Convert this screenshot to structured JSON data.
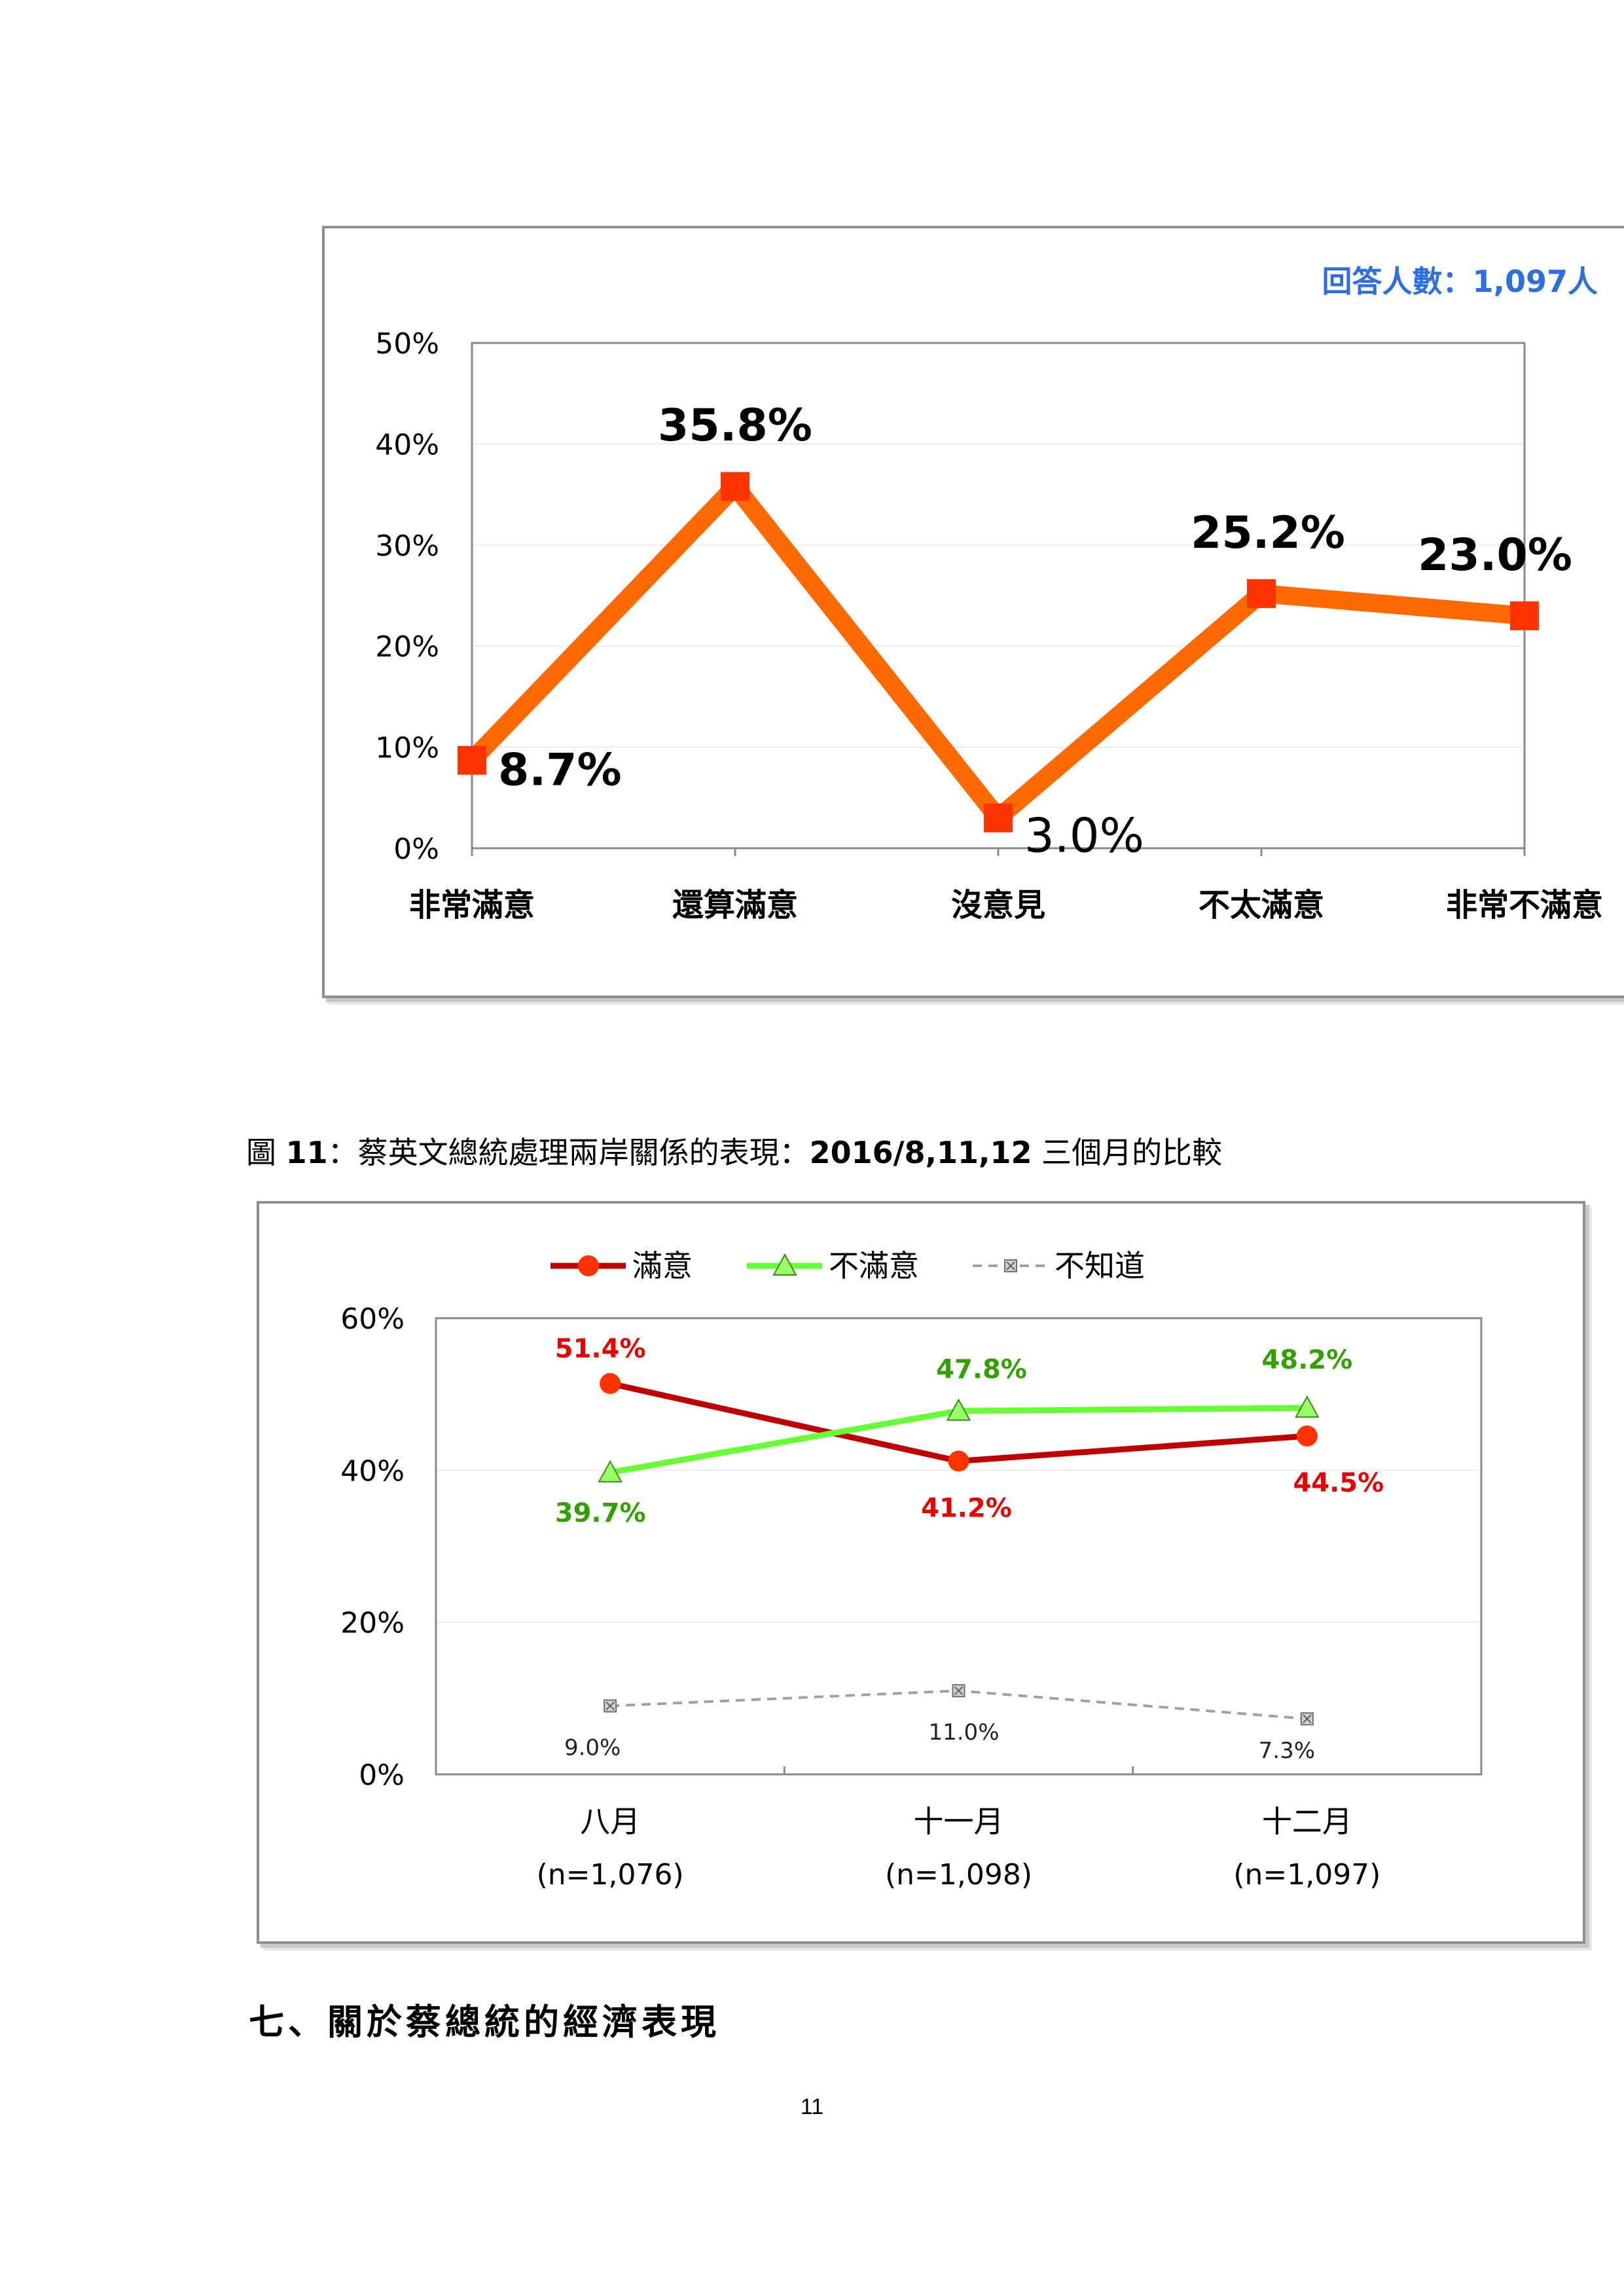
{
  "chart1": {
    "respondents": "回答人數：1,097人",
    "chart_data": {
      "type": "line",
      "categories": [
        "非常滿意",
        "還算滿意",
        "沒意見",
        "不太滿意",
        "非常不滿意"
      ],
      "values": [
        8.7,
        35.8,
        3.0,
        25.2,
        23.0
      ],
      "value_labels": [
        "8.7%",
        "35.8%",
        "3.0%",
        "25.2%",
        "23.0%"
      ],
      "ylim": [
        0,
        50
      ],
      "yticks": [
        "0%",
        "10%",
        "20%",
        "30%",
        "40%",
        "50%"
      ],
      "grid": true,
      "color": "#ff6a00",
      "marker_color": "#ff3300"
    }
  },
  "figure11": {
    "caption_prefix": "圖 ",
    "caption_num": "11",
    "caption_mid": "：蔡英文總統處理兩岸關係的表現：",
    "caption_dates": "2016/8,11,12",
    "caption_suffix": " 三個月的比較"
  },
  "chart2": {
    "chart_data": {
      "type": "line",
      "categories": [
        "八月",
        "十一月",
        "十二月"
      ],
      "category_sublabels": [
        "(n=1,076)",
        "(n=1,098)",
        "(n=1,097)"
      ],
      "ylim": [
        0,
        60
      ],
      "yticks": [
        "0%",
        "20%",
        "40%",
        "60%"
      ],
      "grid": true,
      "legend_position": "top",
      "series": [
        {
          "name": "滿意",
          "values": [
            51.4,
            41.2,
            44.5
          ],
          "labels": [
            "51.4%",
            "41.2%",
            "44.5%"
          ],
          "color": "#c00000",
          "marker": "circle",
          "marker_color": "#ff3300",
          "label_color": "#e60000"
        },
        {
          "name": "不滿意",
          "values": [
            39.7,
            47.8,
            48.2
          ],
          "labels": [
            "39.7%",
            "47.8%",
            "48.2%"
          ],
          "color": "#66ff33",
          "marker": "triangle",
          "marker_color": "#99ff66",
          "label_color": "#33a000"
        },
        {
          "name": "不知道",
          "values": [
            9.0,
            11.0,
            7.3
          ],
          "labels": [
            "9.0%",
            "11.0%",
            "7.3%"
          ],
          "color": "#a0a0a0",
          "marker": "square-x",
          "marker_color": "#a0a0a0",
          "label_color": "#222222",
          "dashed": true
        }
      ]
    }
  },
  "section_heading": "七、關於蔡總統的經濟表現",
  "page_number": "11"
}
